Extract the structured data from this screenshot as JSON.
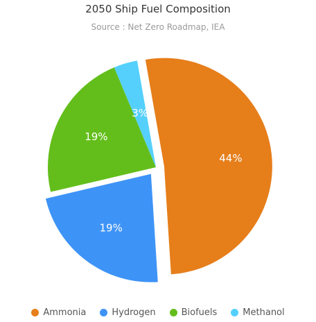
{
  "chart_data": {
    "type": "pie",
    "title": "2050 Ship Fuel Composition",
    "subtitle": "Source : Net Zero Roadmap, IEA",
    "legend_position": "bottom",
    "slices": [
      {
        "name": "Ammonia",
        "value": 44,
        "label": "44%",
        "color": "#E67E1A",
        "exploded": true
      },
      {
        "name": "Hydrogen",
        "value": 19,
        "label": "19%",
        "color": "#3E93F7",
        "exploded": true
      },
      {
        "name": "Biofuels",
        "value": 19,
        "label": "19%",
        "color": "#63BE1B",
        "exploded": false
      },
      {
        "name": "Methanol",
        "value": 3,
        "label": "3%",
        "color": "#55D0FC",
        "exploded": false
      }
    ]
  }
}
